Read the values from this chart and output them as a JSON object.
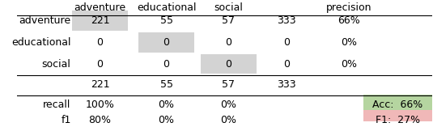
{
  "col_headers": [
    "adventure",
    "educational",
    "social",
    "",
    "precision"
  ],
  "row_labels": [
    "adventure",
    "educational",
    "social",
    "",
    "recall",
    "f1"
  ],
  "matrix": [
    [
      "221",
      "55",
      "57",
      "333",
      "66%"
    ],
    [
      "0",
      "0",
      "0",
      "0",
      "0%"
    ],
    [
      "0",
      "0",
      "0",
      "0",
      "0%"
    ],
    [
      "221",
      "55",
      "57",
      "333",
      ""
    ],
    [
      "100%",
      "0%",
      "0%",
      "",
      ""
    ],
    [
      "80%",
      "0%",
      "0%",
      "",
      ""
    ]
  ],
  "diag_bg": "#d3d3d3",
  "acc_bg": "#b5d5a0",
  "f1_bg": "#f0b8b8",
  "acc_text": "Acc:  66%",
  "f1_text": "F1:  27%",
  "font_size": 9
}
